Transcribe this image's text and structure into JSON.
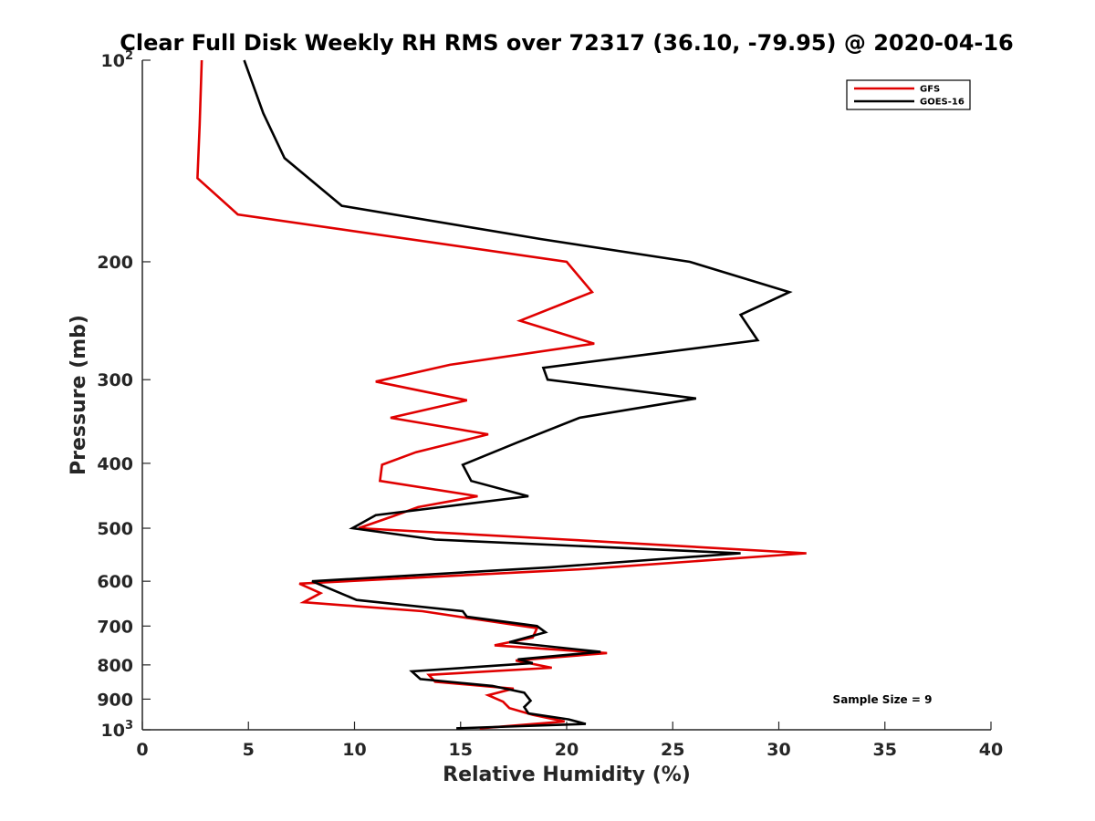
{
  "chart_data": {
    "type": "line",
    "title": "Clear Full Disk Weekly RH RMS over 72317 (36.10, -79.95) @ 2020-04-16",
    "xlabel": "Relative Humidity (%)",
    "ylabel": "Pressure (mb)",
    "xlim": [
      0,
      40
    ],
    "ylim": [
      100,
      1000
    ],
    "y_scale": "log",
    "y_reversed": true,
    "grid": false,
    "legend_position": "top-right",
    "x_ticks": [
      "0",
      "5",
      "10",
      "15",
      "20",
      "25",
      "30",
      "35",
      "40"
    ],
    "y_ticks": [
      {
        "value": 100,
        "base": "10",
        "exp": "2"
      },
      {
        "value": 200,
        "base": "200",
        "exp": ""
      },
      {
        "value": 300,
        "base": "300",
        "exp": ""
      },
      {
        "value": 400,
        "base": "400",
        "exp": ""
      },
      {
        "value": 500,
        "base": "500",
        "exp": ""
      },
      {
        "value": 600,
        "base": "600",
        "exp": ""
      },
      {
        "value": 700,
        "base": "700",
        "exp": ""
      },
      {
        "value": 800,
        "base": "800",
        "exp": ""
      },
      {
        "value": 900,
        "base": "900",
        "exp": ""
      },
      {
        "value": 1000,
        "base": "10",
        "exp": "3"
      }
    ],
    "annotation": "Sample Size = 9",
    "series": [
      {
        "name": "GFS",
        "color": "#e00000",
        "points": [
          [
            2.8,
            100
          ],
          [
            2.7,
            125
          ],
          [
            2.6,
            150
          ],
          [
            4.5,
            170
          ],
          [
            20.0,
            200
          ],
          [
            21.2,
            222
          ],
          [
            17.8,
            245
          ],
          [
            21.3,
            265
          ],
          [
            14.5,
            285
          ],
          [
            11.0,
            302
          ],
          [
            15.3,
            322
          ],
          [
            11.7,
            342
          ],
          [
            16.3,
            362
          ],
          [
            12.9,
            385
          ],
          [
            11.3,
            402
          ],
          [
            11.2,
            425
          ],
          [
            15.8,
            448
          ],
          [
            13.0,
            465
          ],
          [
            11.8,
            480
          ],
          [
            10.2,
            500
          ],
          [
            20.0,
            520
          ],
          [
            31.3,
            545
          ],
          [
            21.0,
            575
          ],
          [
            7.4,
            605
          ],
          [
            8.4,
            625
          ],
          [
            7.6,
            645
          ],
          [
            13.2,
            665
          ],
          [
            15.9,
            685
          ],
          [
            18.6,
            705
          ],
          [
            18.4,
            728
          ],
          [
            16.6,
            748
          ],
          [
            21.9,
            768
          ],
          [
            17.6,
            788
          ],
          [
            19.3,
            808
          ],
          [
            13.5,
            828
          ],
          [
            13.8,
            848
          ],
          [
            17.5,
            868
          ],
          [
            16.3,
            888
          ],
          [
            17.0,
            908
          ],
          [
            17.3,
            928
          ],
          [
            18.4,
            950
          ],
          [
            19.9,
            972
          ],
          [
            15.9,
            995
          ]
        ]
      },
      {
        "name": "GOES-16",
        "color": "#000000",
        "points": [
          [
            4.8,
            100
          ],
          [
            5.7,
            120
          ],
          [
            6.7,
            140
          ],
          [
            9.4,
            165
          ],
          [
            18.8,
            185
          ],
          [
            25.8,
            200
          ],
          [
            30.5,
            222
          ],
          [
            28.2,
            240
          ],
          [
            29.0,
            262
          ],
          [
            18.9,
            288
          ],
          [
            19.1,
            300
          ],
          [
            26.1,
            320
          ],
          [
            20.6,
            342
          ],
          [
            17.7,
            372
          ],
          [
            15.1,
            402
          ],
          [
            15.5,
            425
          ],
          [
            18.2,
            448
          ],
          [
            11.0,
            478
          ],
          [
            9.9,
            500
          ],
          [
            13.8,
            520
          ],
          [
            28.2,
            545
          ],
          [
            19.2,
            572
          ],
          [
            8.0,
            600
          ],
          [
            10.1,
            640
          ],
          [
            15.1,
            665
          ],
          [
            15.3,
            678
          ],
          [
            18.6,
            700
          ],
          [
            19.0,
            715
          ],
          [
            17.3,
            740
          ],
          [
            21.6,
            765
          ],
          [
            17.7,
            785
          ],
          [
            18.4,
            795
          ],
          [
            12.7,
            818
          ],
          [
            13.1,
            840
          ],
          [
            16.5,
            860
          ],
          [
            18.0,
            880
          ],
          [
            18.3,
            905
          ],
          [
            18.0,
            925
          ],
          [
            18.2,
            945
          ],
          [
            20.1,
            965
          ],
          [
            20.9,
            980
          ],
          [
            14.8,
            995
          ]
        ]
      }
    ]
  }
}
